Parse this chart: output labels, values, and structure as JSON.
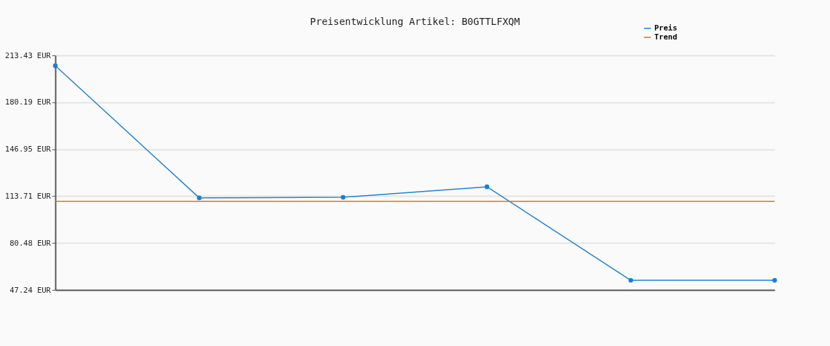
{
  "chart_data": {
    "type": "line",
    "title": "Preisentwicklung Artikel: B0GTTLFXQM",
    "categories": [
      null,
      null,
      null,
      null,
      null,
      null
    ],
    "series": [
      {
        "name": "Preis",
        "color": "#1a7fd4",
        "values": [
          206.1,
          112.5,
          112.9,
          120.3,
          54.1,
          54.1
        ]
      },
      {
        "name": "Trend",
        "color": "#e07000",
        "values": [
          110.0,
          110.0,
          110.0,
          110.0,
          110.0,
          110.0
        ],
        "marker": "none"
      }
    ],
    "ylim": [
      47.24,
      213.43
    ],
    "yticks": [
      {
        "value": 47.24,
        "label": "47.24 EUR"
      },
      {
        "value": 80.48,
        "label": "80.48 EUR"
      },
      {
        "value": 113.71,
        "label": "113.71 EUR"
      },
      {
        "value": 146.95,
        "label": "146.95 EUR"
      },
      {
        "value": 180.19,
        "label": "180.19 EUR"
      },
      {
        "value": 213.43,
        "label": "213.43 EUR"
      }
    ],
    "grid": "y",
    "legend": "top right",
    "marker": "circle",
    "line_style": "solid"
  }
}
